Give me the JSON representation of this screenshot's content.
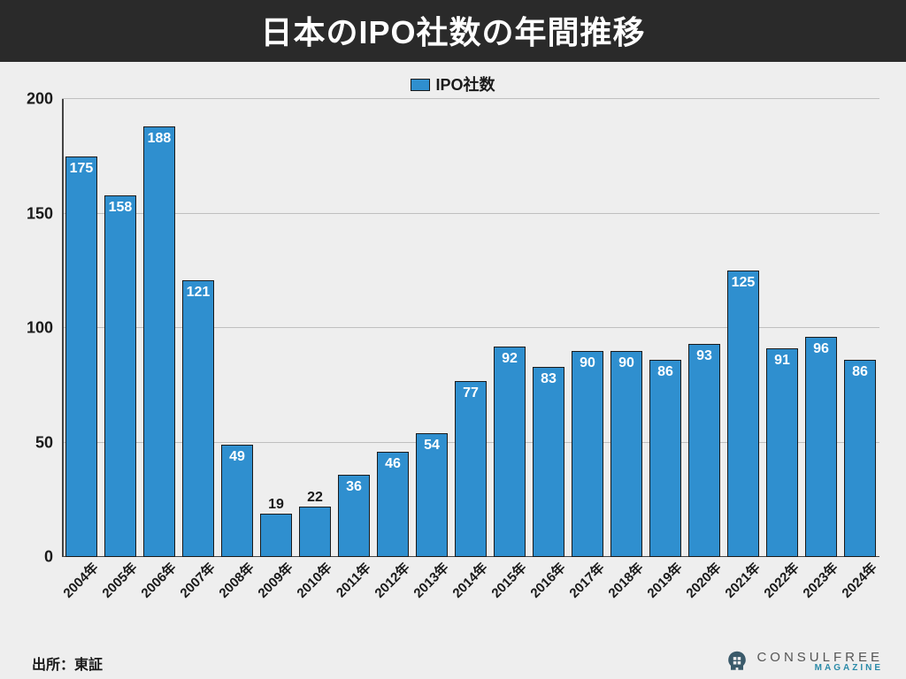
{
  "title": "日本のIPO社数の年間推移",
  "legend_label": "IPO社数",
  "source_label": "出所：東証",
  "brand": {
    "main": "CONSULFREE",
    "sub": "MAGAZINE"
  },
  "chart": {
    "type": "bar",
    "categories": [
      "2004年",
      "2005年",
      "2006年",
      "2007年",
      "2008年",
      "2009年",
      "2010年",
      "2011年",
      "2012年",
      "2013年",
      "2014年",
      "2015年",
      "2016年",
      "2017年",
      "2018年",
      "2019年",
      "2020年",
      "2021年",
      "2022年",
      "2023年",
      "2024年"
    ],
    "values": [
      175,
      158,
      188,
      121,
      49,
      19,
      22,
      36,
      46,
      54,
      77,
      92,
      83,
      90,
      90,
      86,
      93,
      125,
      91,
      96,
      86
    ],
    "bar_color": "#2f8fcf",
    "bar_border_color": "#1a1a1a",
    "background_color": "#eeeeee",
    "grid_color": "#bfbfbf",
    "axis_color": "#444444",
    "ylim": [
      0,
      200
    ],
    "ytick_step": 50,
    "yticks": [
      0,
      50,
      100,
      150,
      200
    ],
    "value_label_color_inside": "#ffffff",
    "value_label_color_above": "#1a1a1a",
    "value_label_fontsize": 16,
    "value_label_above_threshold": 30,
    "title_fontsize": 36,
    "title_bg": "#2a2a2a",
    "title_color": "#ffffff",
    "axis_label_fontsize": 18,
    "x_label_rotation_deg": -45,
    "bar_width_ratio": 0.82
  }
}
